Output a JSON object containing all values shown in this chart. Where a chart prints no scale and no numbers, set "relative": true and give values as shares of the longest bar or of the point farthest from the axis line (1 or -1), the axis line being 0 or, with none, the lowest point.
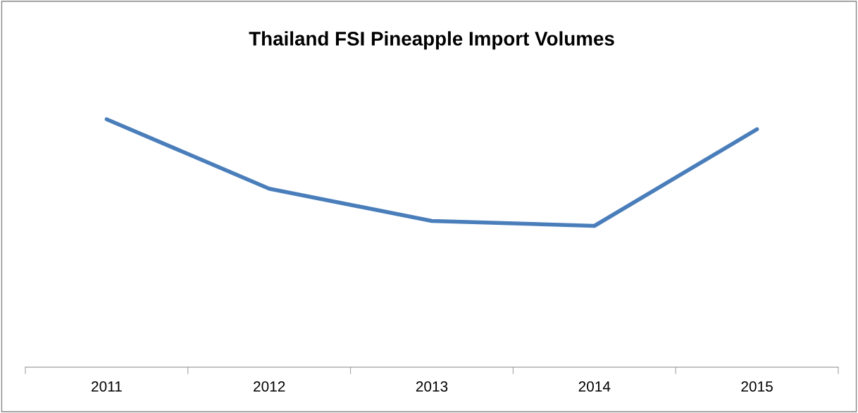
{
  "chart_data": {
    "type": "line",
    "title": "Thailand FSI Pineapple Import Volumes",
    "relative": true,
    "categories": [
      "2011",
      "2012",
      "2013",
      "2014",
      "2015"
    ],
    "series": [
      {
        "color": "#4a7ebb",
        "values": [
          1,
          0.72,
          0.59,
          0.57,
          0.96
        ]
      }
    ],
    "grid": false,
    "legend": false,
    "marker": "none",
    "line_style": "solid"
  }
}
